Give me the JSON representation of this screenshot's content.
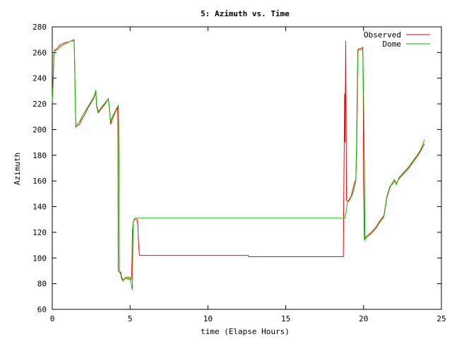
{
  "chart_data": {
    "type": "line",
    "title": "5: Azimuth vs. Time",
    "xlabel": "time (Elapse Hours)",
    "ylabel": "Azimuth",
    "xlim": [
      0,
      25
    ],
    "ylim": [
      60,
      280
    ],
    "xticks": [
      0,
      5,
      10,
      15,
      20,
      25
    ],
    "yticks": [
      60,
      80,
      100,
      120,
      140,
      160,
      180,
      200,
      220,
      240,
      260,
      280
    ],
    "grid": false,
    "legend_position": "top-right",
    "series": [
      {
        "name": "Observed",
        "color": "#ff0000",
        "points": [
          [
            0.0,
            224
          ],
          [
            0.05,
            236
          ],
          [
            0.1,
            255
          ],
          [
            0.15,
            262
          ],
          [
            0.3,
            263
          ],
          [
            0.5,
            266
          ],
          [
            0.7,
            267
          ],
          [
            0.9,
            268
          ],
          [
            1.05,
            268
          ],
          [
            1.2,
            269
          ],
          [
            1.4,
            270
          ],
          [
            1.43,
            258
          ],
          [
            1.46,
            235
          ],
          [
            1.49,
            215
          ],
          [
            1.52,
            202
          ],
          [
            1.6,
            203
          ],
          [
            1.75,
            204
          ],
          [
            1.9,
            208
          ],
          [
            2.1,
            212
          ],
          [
            2.3,
            217
          ],
          [
            2.5,
            221
          ],
          [
            2.65,
            224
          ],
          [
            2.75,
            227
          ],
          [
            2.8,
            230
          ],
          [
            2.85,
            218
          ],
          [
            2.95,
            213
          ],
          [
            3.2,
            217
          ],
          [
            3.4,
            220
          ],
          [
            3.6,
            224
          ],
          [
            3.7,
            213
          ],
          [
            3.75,
            204
          ],
          [
            3.85,
            208
          ],
          [
            4.0,
            212
          ],
          [
            4.1,
            215
          ],
          [
            4.2,
            217
          ],
          [
            4.22,
            205
          ],
          [
            4.23,
            155
          ],
          [
            4.24,
            90
          ],
          [
            4.3,
            89
          ],
          [
            4.4,
            89
          ],
          [
            4.45,
            85
          ],
          [
            4.55,
            83
          ],
          [
            4.7,
            84
          ],
          [
            4.9,
            84
          ],
          [
            5.0,
            83
          ],
          [
            5.1,
            84
          ],
          [
            5.13,
            103
          ],
          [
            5.15,
            120
          ],
          [
            5.2,
            128
          ],
          [
            5.3,
            130
          ],
          [
            5.45,
            130
          ],
          [
            5.5,
            125
          ],
          [
            5.55,
            110
          ],
          [
            5.6,
            102
          ],
          [
            7.0,
            102
          ],
          [
            10.0,
            102
          ],
          [
            12.6,
            102
          ],
          [
            12.62,
            101
          ],
          [
            15.0,
            101
          ],
          [
            18.7,
            101
          ],
          [
            18.72,
            140
          ],
          [
            18.75,
            180
          ],
          [
            18.78,
            228
          ],
          [
            18.8,
            190
          ],
          [
            18.82,
            210
          ],
          [
            18.85,
            269
          ],
          [
            18.87,
            225
          ],
          [
            18.9,
            145
          ],
          [
            19.0,
            144
          ],
          [
            19.2,
            148
          ],
          [
            19.4,
            158
          ],
          [
            19.5,
            161
          ],
          [
            19.55,
            180
          ],
          [
            19.6,
            225
          ],
          [
            19.63,
            262
          ],
          [
            19.7,
            263
          ],
          [
            19.85,
            263
          ],
          [
            19.95,
            264
          ],
          [
            19.97,
            240
          ],
          [
            19.98,
            226
          ],
          [
            20.0,
            160
          ],
          [
            20.05,
            115
          ],
          [
            20.2,
            117
          ],
          [
            20.5,
            120
          ],
          [
            20.8,
            124
          ],
          [
            21.0,
            128
          ],
          [
            21.3,
            133
          ],
          [
            21.5,
            148
          ],
          [
            21.7,
            156
          ],
          [
            21.9,
            158
          ],
          [
            22.0,
            160
          ],
          [
            22.1,
            158
          ],
          [
            22.3,
            162
          ],
          [
            22.6,
            166
          ],
          [
            22.9,
            170
          ],
          [
            23.2,
            175
          ],
          [
            23.5,
            180
          ],
          [
            23.7,
            184
          ],
          [
            23.9,
            189
          ]
        ]
      },
      {
        "name": "Dome",
        "color": "#00c000",
        "points": [
          [
            0.0,
            222
          ],
          [
            0.05,
            235
          ],
          [
            0.1,
            258
          ],
          [
            0.15,
            261
          ],
          [
            0.3,
            262
          ],
          [
            0.5,
            264
          ],
          [
            0.7,
            266
          ],
          [
            0.9,
            267
          ],
          [
            1.05,
            268
          ],
          [
            1.2,
            269
          ],
          [
            1.4,
            269
          ],
          [
            1.43,
            258
          ],
          [
            1.46,
            235
          ],
          [
            1.49,
            215
          ],
          [
            1.52,
            204
          ],
          [
            1.6,
            204
          ],
          [
            1.75,
            206
          ],
          [
            1.9,
            210
          ],
          [
            2.1,
            214
          ],
          [
            2.3,
            218
          ],
          [
            2.5,
            222
          ],
          [
            2.65,
            225
          ],
          [
            2.75,
            228
          ],
          [
            2.8,
            231
          ],
          [
            2.85,
            219
          ],
          [
            2.95,
            214
          ],
          [
            3.2,
            218
          ],
          [
            3.4,
            221
          ],
          [
            3.6,
            224
          ],
          [
            3.7,
            214
          ],
          [
            3.75,
            206
          ],
          [
            3.85,
            210
          ],
          [
            4.0,
            213
          ],
          [
            4.1,
            216
          ],
          [
            4.25,
            219
          ],
          [
            4.27,
            200
          ],
          [
            4.29,
            165
          ],
          [
            4.3,
            130
          ],
          [
            4.32,
            89
          ],
          [
            4.4,
            87
          ],
          [
            4.45,
            84
          ],
          [
            4.55,
            82
          ],
          [
            4.7,
            85
          ],
          [
            4.9,
            85
          ],
          [
            5.0,
            85
          ],
          [
            5.1,
            78
          ],
          [
            5.15,
            75
          ],
          [
            5.17,
            100
          ],
          [
            5.2,
            128
          ],
          [
            5.3,
            131
          ],
          [
            5.6,
            131
          ],
          [
            7.0,
            131
          ],
          [
            10.0,
            131
          ],
          [
            15.0,
            131
          ],
          [
            18.8,
            131
          ],
          [
            18.9,
            137
          ],
          [
            18.95,
            143
          ],
          [
            19.1,
            145
          ],
          [
            19.3,
            150
          ],
          [
            19.45,
            157
          ],
          [
            19.5,
            160
          ],
          [
            19.55,
            190
          ],
          [
            19.6,
            240
          ],
          [
            19.65,
            262
          ],
          [
            19.8,
            262
          ],
          [
            19.9,
            262
          ],
          [
            19.95,
            262
          ],
          [
            19.97,
            250
          ],
          [
            20.0,
            225
          ],
          [
            20.05,
            175
          ],
          [
            20.08,
            114
          ],
          [
            20.2,
            116
          ],
          [
            20.5,
            119
          ],
          [
            20.8,
            123
          ],
          [
            21.0,
            127
          ],
          [
            21.3,
            132
          ],
          [
            21.5,
            147
          ],
          [
            21.7,
            155
          ],
          [
            21.9,
            160
          ],
          [
            22.0,
            161
          ],
          [
            22.1,
            157
          ],
          [
            22.3,
            163
          ],
          [
            22.6,
            167
          ],
          [
            22.9,
            171
          ],
          [
            23.2,
            176
          ],
          [
            23.5,
            181
          ],
          [
            23.7,
            185
          ],
          [
            23.9,
            192
          ]
        ]
      }
    ]
  }
}
